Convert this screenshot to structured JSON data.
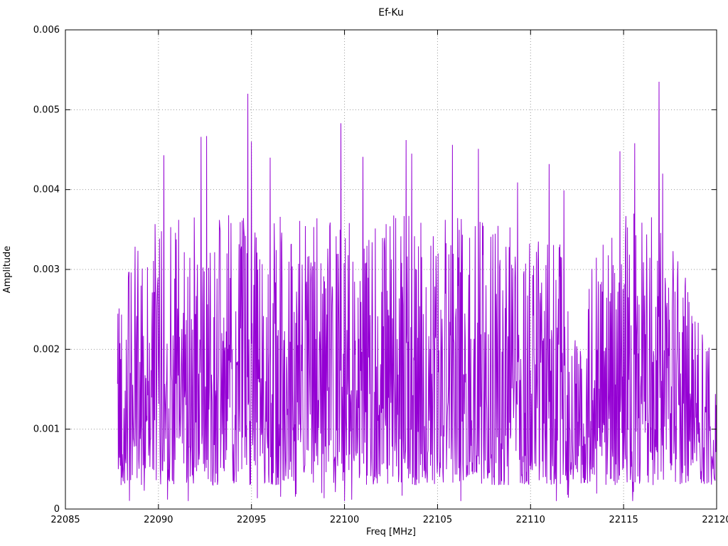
{
  "chart_data": {
    "type": "line",
    "title": "Ef-Ku",
    "xlabel": "Freq [MHz]",
    "ylabel": "Amplitude",
    "xlim": [
      22085,
      22120
    ],
    "ylim": [
      0,
      0.006
    ],
    "grid": true,
    "legend_position": "none",
    "line_color": "#9400D3",
    "grid_color": "#999999",
    "x_ticks": [
      {
        "v": 22085,
        "label": "22085"
      },
      {
        "v": 22090,
        "label": "22090"
      },
      {
        "v": 22095,
        "label": "22095"
      },
      {
        "v": 22100,
        "label": "22100"
      },
      {
        "v": 22105,
        "label": "22105"
      },
      {
        "v": 22110,
        "label": "22110"
      },
      {
        "v": 22115,
        "label": "22115"
      },
      {
        "v": 22120,
        "label": "22120"
      }
    ],
    "y_ticks": [
      {
        "v": 0,
        "label": "0"
      },
      {
        "v": 0.001,
        "label": "0.001"
      },
      {
        "v": 0.002,
        "label": "0.002"
      },
      {
        "v": 0.003,
        "label": "0.003"
      },
      {
        "v": 0.004,
        "label": "0.004"
      },
      {
        "v": 0.005,
        "label": "0.005"
      },
      {
        "v": 0.006,
        "label": "0.006"
      }
    ],
    "signal": {
      "description": "dense noise-like amplitude spectrum, values mostly 0.0005-0.004 with sharp spikes",
      "x_start": 22087.8,
      "x_end": 22120,
      "n_points": 1500,
      "seed": 42,
      "y_floor": 0.0003,
      "y_span": 0.0034,
      "shape": 1.5,
      "envelope": [
        [
          22087.8,
          0.8
        ],
        [
          22090,
          1.0
        ],
        [
          22095,
          1.0
        ],
        [
          22100,
          1.0
        ],
        [
          22105,
          1.0
        ],
        [
          22110,
          0.97
        ],
        [
          22111.8,
          0.88
        ],
        [
          22112.5,
          0.6
        ],
        [
          22113.5,
          0.85
        ],
        [
          22115,
          1.0
        ],
        [
          22116.5,
          1.0
        ],
        [
          22117.2,
          1.05
        ],
        [
          22118.5,
          0.72
        ],
        [
          22119.3,
          0.55
        ],
        [
          22120,
          0.45
        ]
      ],
      "peaks": [
        [
          22090.3,
          0.00443
        ],
        [
          22092.3,
          0.00466
        ],
        [
          22092.6,
          0.00467
        ],
        [
          22094.8,
          0.0052
        ],
        [
          22095.0,
          0.0046
        ],
        [
          22096.0,
          0.0044
        ],
        [
          22099.8,
          0.00483
        ],
        [
          22101.0,
          0.00441
        ],
        [
          22103.3,
          0.00462
        ],
        [
          22103.6,
          0.00445
        ],
        [
          22105.8,
          0.00456
        ],
        [
          22107.2,
          0.00451
        ],
        [
          22109.3,
          0.00409
        ],
        [
          22111.0,
          0.00432
        ],
        [
          22111.8,
          0.00399
        ],
        [
          22114.8,
          0.00448
        ],
        [
          22115.6,
          0.00458
        ],
        [
          22116.9,
          0.00535
        ],
        [
          22117.1,
          0.0042
        ]
      ]
    }
  }
}
